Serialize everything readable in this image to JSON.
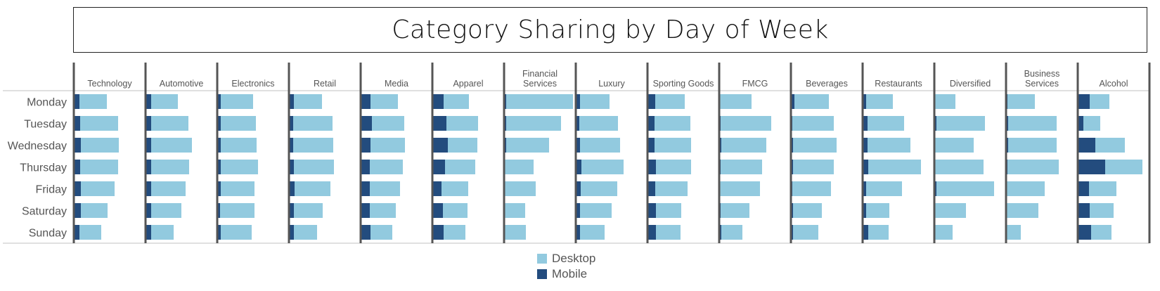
{
  "chart_data": {
    "type": "bar",
    "orientation": "horizontal",
    "stacked": true,
    "title": "Category Sharing by Day of Week",
    "xlabel": "",
    "ylabel": "",
    "value_units": "relative share (estimated, no axis shown)",
    "days": [
      "Monday",
      "Tuesday",
      "Wednesday",
      "Thursday",
      "Friday",
      "Saturday",
      "Sunday"
    ],
    "legend": {
      "position": "bottom-center",
      "entries": [
        {
          "name": "Desktop",
          "color": "#92CADF"
        },
        {
          "name": "Mobile",
          "color": "#234C7E"
        }
      ]
    },
    "colors": {
      "desktop": "#92CADF",
      "mobile": "#234C7E",
      "panel_line": "#555555",
      "rule": "#d6d6d6",
      "label": "#555555"
    },
    "panels": [
      {
        "category": "Technology",
        "label_lines": [
          "Technology"
        ],
        "mobile": [
          7,
          8,
          9,
          8,
          9,
          9,
          7
        ],
        "desktop": [
          39,
          54,
          54,
          54,
          48,
          38,
          31
        ]
      },
      {
        "category": "Automotive",
        "label_lines": [
          "Automotive"
        ],
        "mobile": [
          7,
          7,
          7,
          7,
          7,
          7,
          7
        ],
        "desktop": [
          38,
          53,
          58,
          54,
          49,
          43,
          32
        ]
      },
      {
        "category": "Electronics",
        "label_lines": [
          "Electronics"
        ],
        "mobile": [
          4,
          4,
          4,
          4,
          4,
          3,
          4
        ],
        "desktop": [
          46,
          50,
          51,
          53,
          48,
          49,
          44
        ]
      },
      {
        "category": "Retail",
        "label_lines": [
          "Retail"
        ],
        "mobile": [
          6,
          5,
          5,
          6,
          7,
          6,
          6
        ],
        "desktop": [
          40,
          56,
          57,
          57,
          51,
          41,
          33
        ]
      },
      {
        "category": "Media",
        "label_lines": [
          "Media"
        ],
        "mobile": [
          13,
          15,
          13,
          12,
          12,
          12,
          13
        ],
        "desktop": [
          39,
          46,
          49,
          47,
          43,
          37,
          31
        ]
      },
      {
        "category": "Apparel",
        "label_lines": [
          "Apparel"
        ],
        "mobile": [
          15,
          19,
          21,
          17,
          12,
          14,
          15
        ],
        "desktop": [
          36,
          45,
          42,
          43,
          38,
          35,
          31
        ]
      },
      {
        "category": "Financial Services",
        "label_lines": [
          "Financial",
          "Services"
        ],
        "mobile": [
          2,
          2,
          2,
          0,
          0,
          0,
          0
        ],
        "desktop": [
          95,
          78,
          61,
          41,
          44,
          29,
          30
        ]
      },
      {
        "category": "Luxury",
        "label_lines": [
          "Luxury"
        ],
        "mobile": [
          5,
          4,
          5,
          7,
          6,
          5,
          5
        ],
        "desktop": [
          42,
          55,
          57,
          60,
          52,
          45,
          35
        ]
      },
      {
        "category": "Sporting Goods",
        "label_lines": [
          "Sporting Goods"
        ],
        "mobile": [
          10,
          9,
          9,
          11,
          10,
          11,
          11
        ],
        "desktop": [
          42,
          51,
          52,
          50,
          46,
          36,
          35
        ]
      },
      {
        "category": "FMCG",
        "label_lines": [
          "FMCG"
        ],
        "mobile": [
          0,
          1,
          2,
          1,
          0,
          1,
          2
        ],
        "desktop": [
          45,
          72,
          64,
          59,
          57,
          41,
          30
        ]
      },
      {
        "category": "Beverages",
        "label_lines": [
          "Beverages"
        ],
        "mobile": [
          4,
          1,
          2,
          2,
          1,
          2,
          2
        ],
        "desktop": [
          49,
          59,
          62,
          58,
          55,
          41,
          36
        ]
      },
      {
        "category": "Restaurants",
        "label_lines": [
          "Restaurants"
        ],
        "mobile": [
          4,
          6,
          6,
          7,
          4,
          4,
          7
        ],
        "desktop": [
          38,
          52,
          61,
          75,
          51,
          33,
          29
        ]
      },
      {
        "category": "Diversified",
        "label_lines": [
          "Diversified"
        ],
        "mobile": [
          0,
          2,
          0,
          0,
          2,
          0,
          0
        ],
        "desktop": [
          29,
          69,
          55,
          69,
          82,
          44,
          25
        ]
      },
      {
        "category": "Business Services",
        "label_lines": [
          "Business",
          "Services"
        ],
        "mobile": [
          1,
          2,
          2,
          1,
          0,
          0,
          0
        ],
        "desktop": [
          39,
          69,
          69,
          73,
          54,
          45,
          20
        ]
      },
      {
        "category": "Alcohol",
        "label_lines": [
          "Alcohol"
        ],
        "mobile": [
          16,
          7,
          24,
          38,
          15,
          16,
          18
        ],
        "desktop": [
          28,
          24,
          42,
          53,
          39,
          34,
          29
        ]
      }
    ]
  }
}
